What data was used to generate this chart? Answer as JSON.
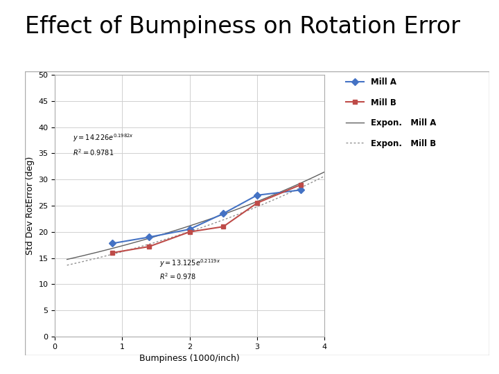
{
  "title": "Effect of Bumpiness on Rotation Error",
  "xlabel": "Bumpiness (1000/inch)",
  "ylabel": "Std Dev RotError (deg)",
  "mill_a_x": [
    0.85,
    1.4,
    2.0,
    2.5,
    3.0,
    3.65
  ],
  "mill_a_y": [
    17.8,
    19.0,
    20.5,
    23.5,
    27.0,
    28.0
  ],
  "mill_b_x": [
    0.85,
    1.4,
    2.0,
    2.5,
    3.0,
    3.65
  ],
  "mill_b_y": [
    16.0,
    17.2,
    20.0,
    21.0,
    25.5,
    29.0
  ],
  "mill_a_color": "#4472C4",
  "mill_b_color": "#BE4B48",
  "expon_a_color": "#606060",
  "expon_b_color": "#909090",
  "mill_a_label": "Mill A",
  "mill_b_label": "Mill B",
  "expon_a_label": "Expon.   Mill A",
  "expon_b_label": "Expon.   Mill B",
  "mill_a_A": 14.226,
  "mill_a_b": 0.1982,
  "mill_b_A": 13.125,
  "mill_b_b": 0.2119,
  "ann_a_x": 0.27,
  "ann_a_y1": 37.5,
  "ann_a_y2": 34.5,
  "ann_b_x": 1.55,
  "ann_b_y1": 13.5,
  "ann_b_y2": 10.8,
  "xlim": [
    0,
    4
  ],
  "ylim": [
    0,
    50
  ],
  "xticks": [
    0,
    1,
    2,
    3,
    4
  ],
  "yticks": [
    0,
    5,
    10,
    15,
    20,
    25,
    30,
    35,
    40,
    45,
    50
  ],
  "title_fontsize": 24,
  "axis_label_fontsize": 9,
  "tick_fontsize": 8,
  "ann_fontsize": 7,
  "background_color": "#ffffff",
  "plot_bg_color": "#ffffff",
  "grid_color": "#d0d0d0",
  "border_color": "#aaaaaa"
}
